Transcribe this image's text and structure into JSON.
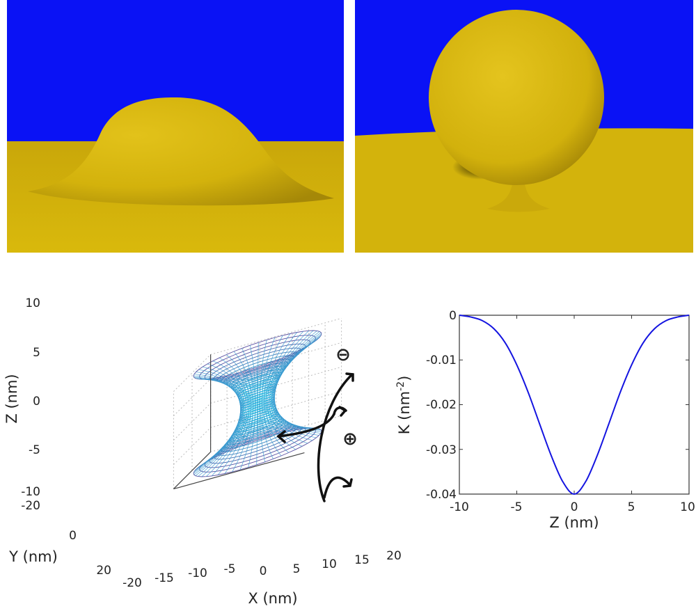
{
  "renders": [
    {
      "name": "bud",
      "colors": {
        "background": "#0a12f5",
        "membrane": "#d2b20a"
      }
    },
    {
      "name": "vesicle",
      "colors": {
        "background": "#0a12f5",
        "membrane": "#d2b20a"
      }
    }
  ],
  "surface_plot": {
    "xlabel": "X (nm)",
    "ylabel": "Y (nm)",
    "zlabel": "Z (nm)",
    "x_ticks": [
      "-20",
      "-15",
      "-10",
      "-5",
      "0",
      "5",
      "10",
      "15",
      "20"
    ],
    "y_ticks": [
      "-20",
      "0",
      "20"
    ],
    "z_ticks": [
      "10",
      "5",
      "0",
      "-5",
      "-10"
    ],
    "neck_radius": 5,
    "z_range": [
      -10,
      10
    ],
    "annotations": {
      "minus": "⊖",
      "plus": "⊕"
    },
    "colors": {
      "mesh_outer": "#5a4fa0",
      "mesh_inner": "#19c8e8"
    }
  },
  "chart_data": {
    "type": "line",
    "title": "",
    "xlabel": "Z (nm)",
    "ylabel": "K (nm⁻²)",
    "ylabel_parts": {
      "base": "K (nm",
      "sup": "-2",
      "close": ")"
    },
    "xlim": [
      -10,
      10
    ],
    "ylim": [
      -0.04,
      0
    ],
    "x_ticks": [
      "-10",
      "-5",
      "0",
      "5",
      "10"
    ],
    "y_ticks": [
      "0",
      "-0.01",
      "-0.02",
      "-0.03",
      "-0.04"
    ],
    "series": [
      {
        "color": "#1414e0",
        "x": [
          -10,
          -9,
          -8,
          -7,
          -6,
          -5,
          -4,
          -3,
          -2,
          -1,
          0,
          1,
          2,
          3,
          4,
          5,
          6,
          7,
          8,
          9,
          10
        ],
        "y": [
          0,
          -0.0004,
          -0.0012,
          -0.003,
          -0.0062,
          -0.0111,
          -0.0173,
          -0.0244,
          -0.0314,
          -0.0372,
          -0.04,
          -0.0372,
          -0.0314,
          -0.0244,
          -0.0173,
          -0.0111,
          -0.0062,
          -0.003,
          -0.0012,
          -0.0004,
          0
        ]
      }
    ]
  }
}
